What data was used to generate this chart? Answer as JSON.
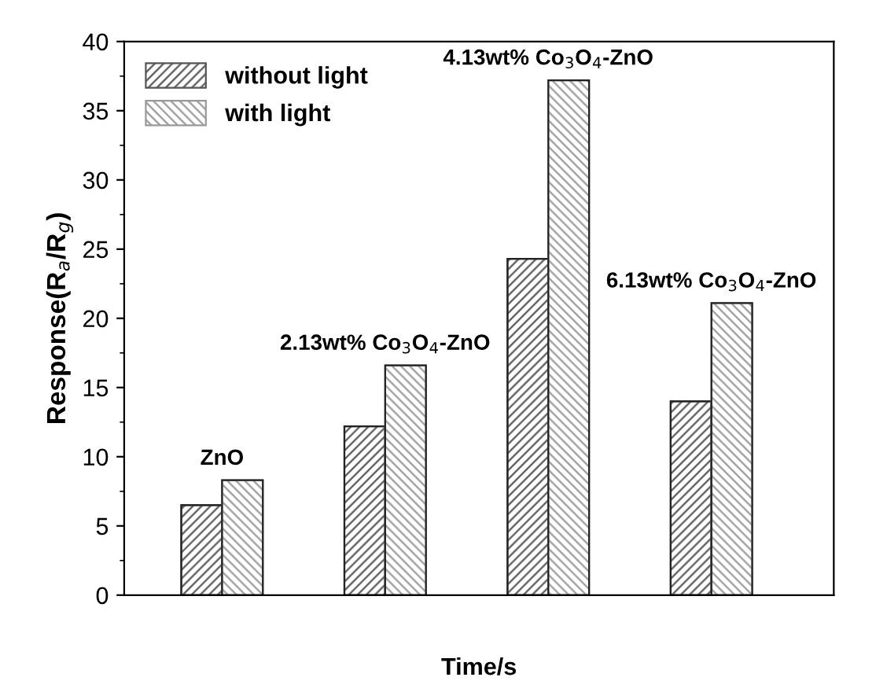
{
  "chart_data": {
    "type": "bar",
    "xlabel": "Time/s",
    "ylabel": "Response(R$_{a}$/R$_{g}$)",
    "categories": [
      null,
      null,
      null,
      null
    ],
    "series": [
      {
        "name": "without light",
        "color": "#555555",
        "values": [
          6.5,
          12.2,
          24.3,
          14.0
        ]
      },
      {
        "name": "with light",
        "color": "#999999",
        "values": [
          8.3,
          16.6,
          37.2,
          21.1
        ]
      }
    ],
    "annotations": [
      "ZnO",
      "2.13wt% Co$_{3}$O$_{4}$-ZnO",
      "4.13wt% Co$_{3}$O$_{4}$-ZnO",
      "6.13wt% Co$_{3}$O$_{4}$-ZnO"
    ],
    "ylim": [
      0,
      40
    ],
    "yticks": [
      0,
      5,
      10,
      15,
      20,
      25,
      30,
      35,
      40
    ],
    "grid": false,
    "legend": "top left"
  }
}
